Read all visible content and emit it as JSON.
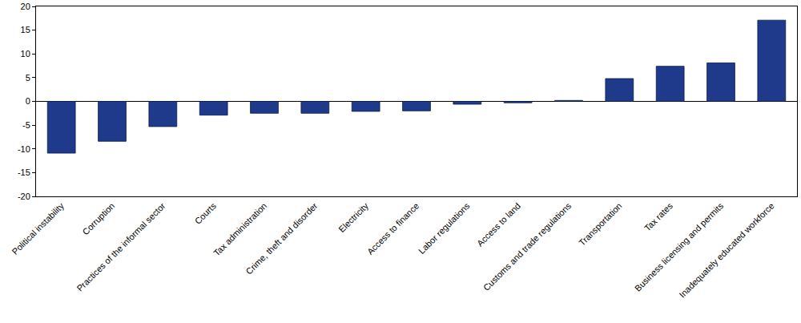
{
  "chart_data": {
    "type": "bar",
    "categories": [
      "Political instability",
      "Corruption",
      "Practices of the informal sector",
      "Courts",
      "Tax administration",
      "Crime, theft and disorder",
      "Electricity",
      "Access to finance",
      "Labor regulations",
      "Access to land",
      "Customs and trade regulations",
      "Transportation",
      "Tax rates",
      "Business licensing and permits",
      "Inadequately educated workforce"
    ],
    "values": [
      -10.9,
      -8.4,
      -5.3,
      -2.9,
      -2.5,
      -2.5,
      -2.1,
      -2.0,
      -0.6,
      -0.3,
      0.2,
      4.8,
      7.4,
      8.1,
      17.1
    ],
    "color": "#1f3a8a",
    "ylim": [
      -20,
      20
    ],
    "yticks": [
      -20,
      -15,
      -10,
      -5,
      0,
      5,
      10,
      15,
      20
    ],
    "grid": false
  }
}
